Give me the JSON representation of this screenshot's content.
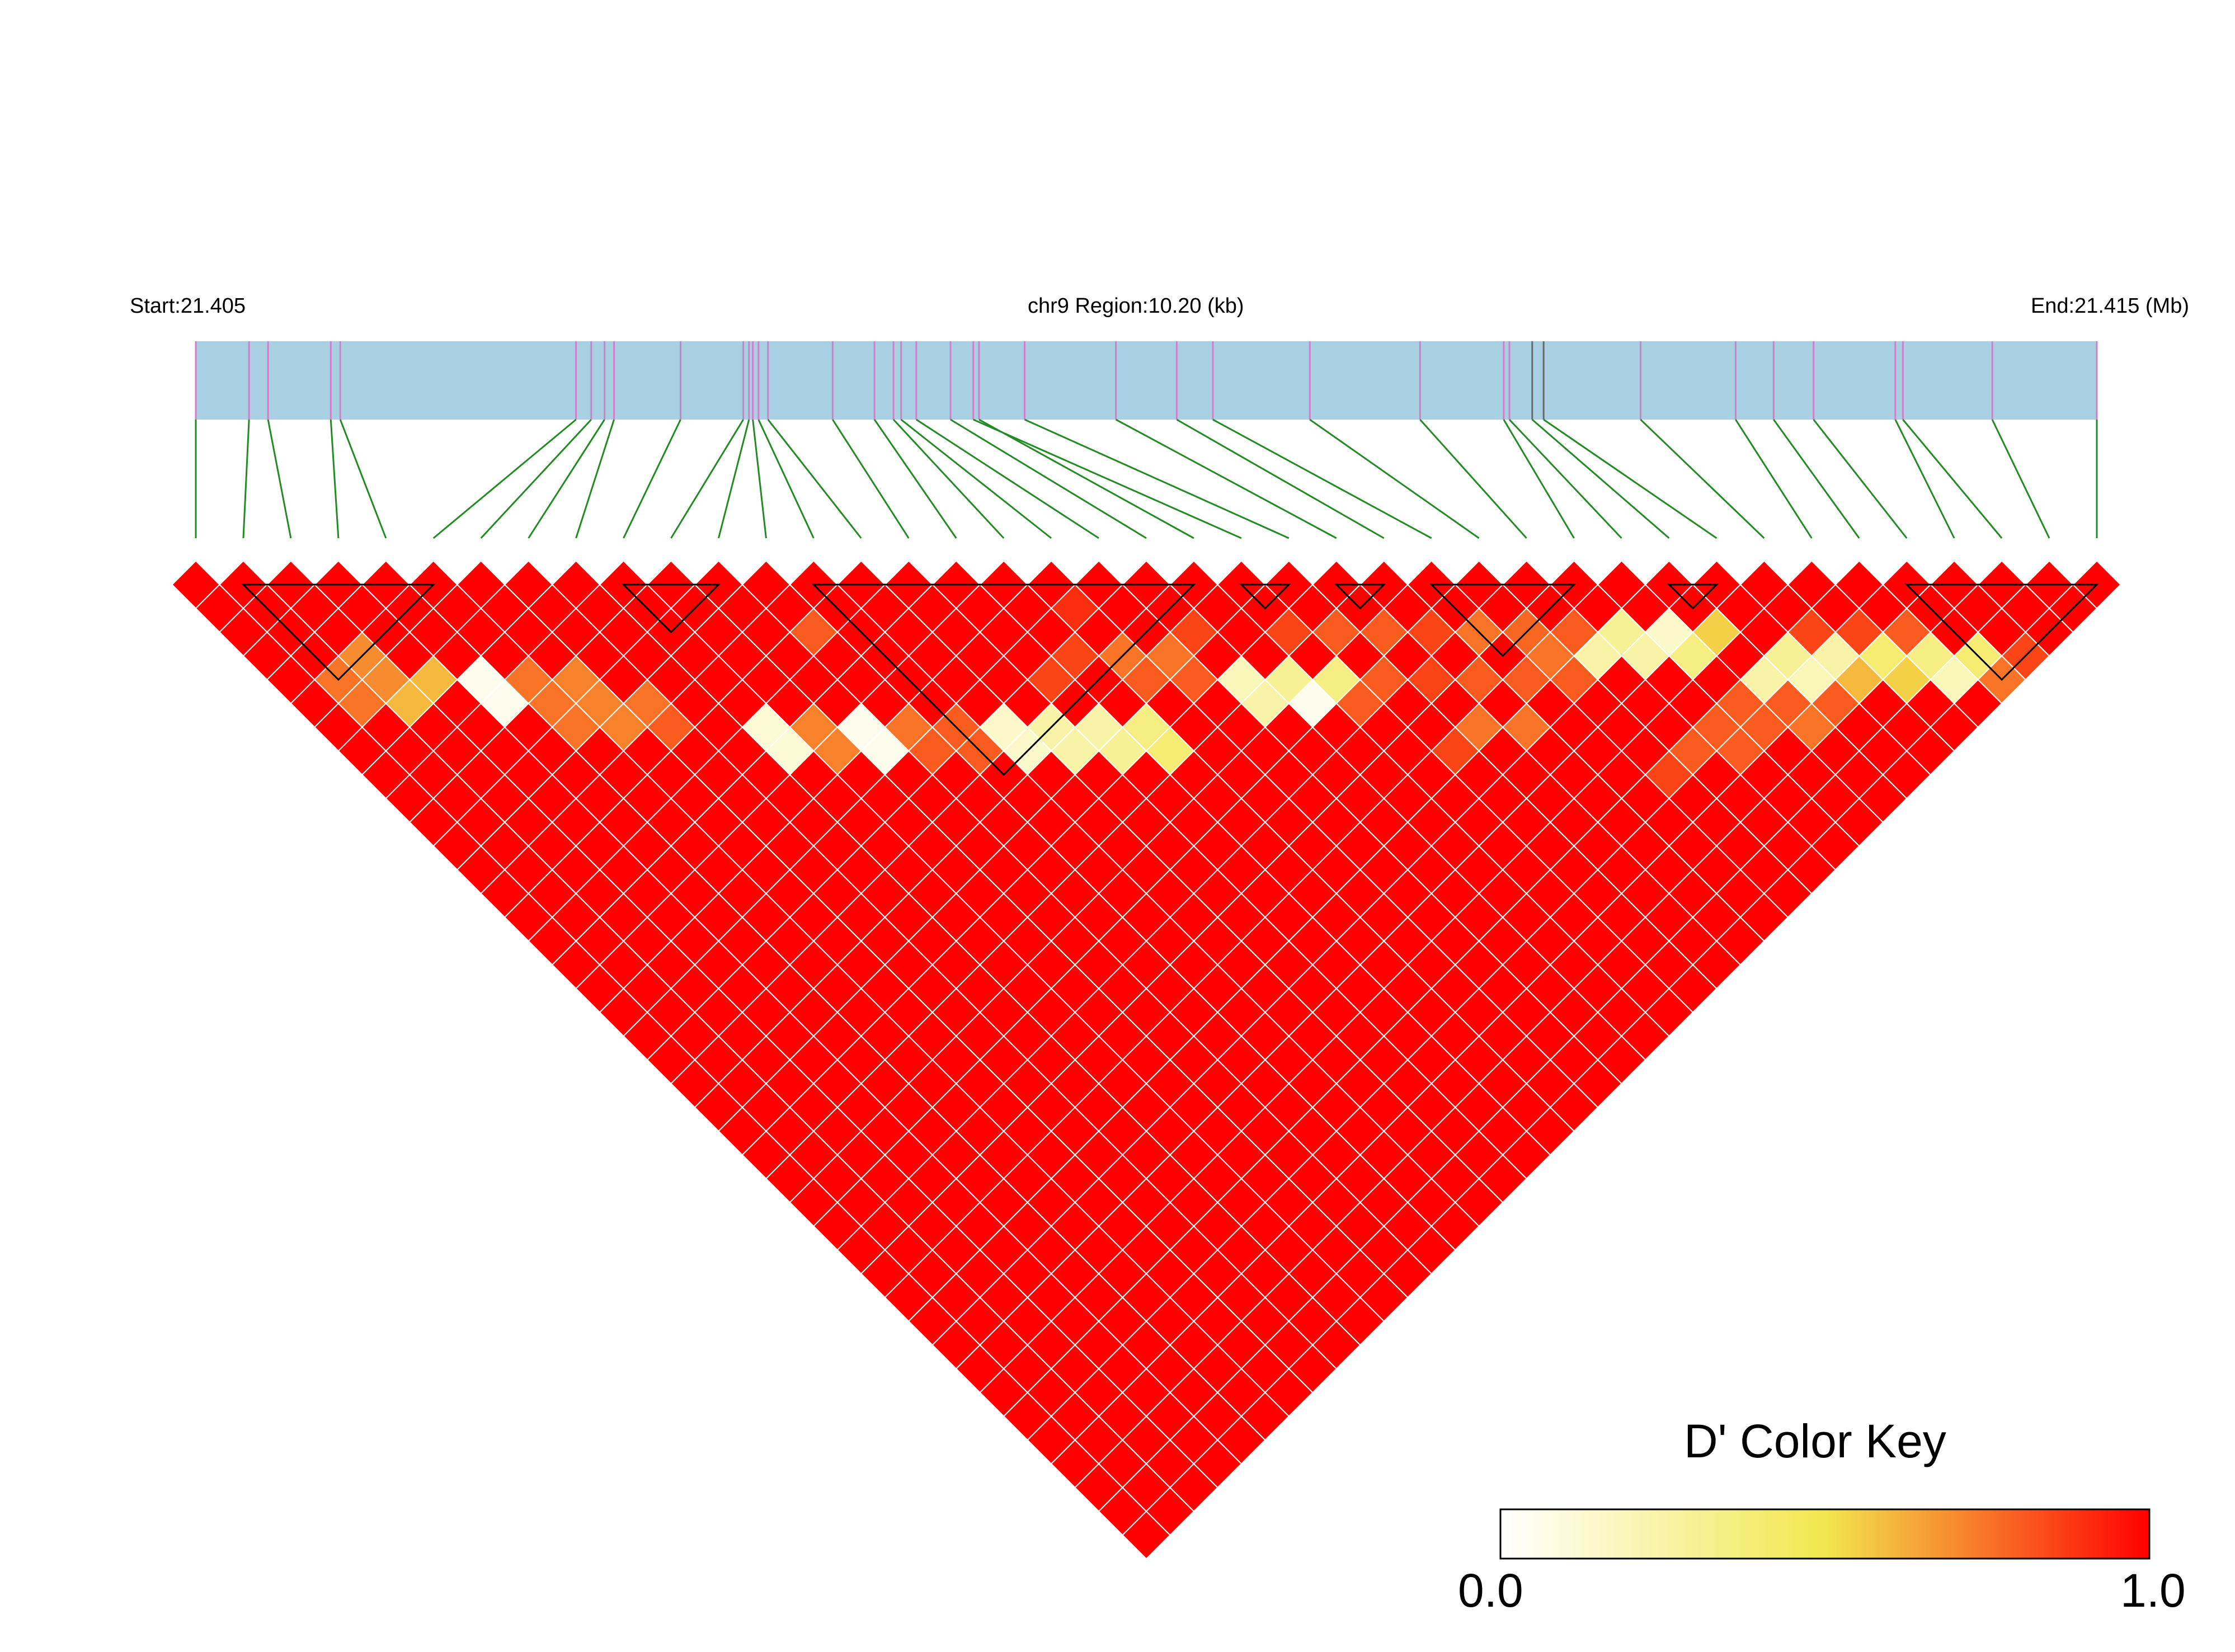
{
  "header": {
    "start_label": "Start:21.405",
    "region_label": "chr9 Region:10.20 (kb)",
    "end_label": "End:21.415 (Mb)"
  },
  "color_key": {
    "title": "D' Color Key",
    "min_label": "0.0",
    "max_label": "1.0",
    "colors": [
      "#ffffff",
      "#f2e74e",
      "#ff0000"
    ]
  },
  "colors": {
    "track": "#a8cfe2",
    "snp_tick": "#d07fc8",
    "snp_tick_dark": "#6a6a6a",
    "connector": "#238b23",
    "grid": "#ffffff",
    "block_outline": "#000000"
  },
  "chart_data": {
    "type": "heatmap",
    "title": "",
    "value_label": "D'",
    "region": {
      "chromosome": "chr9",
      "start_mb": 21.405,
      "end_mb": 21.415,
      "length_kb": 10.2
    },
    "n_snps": 41,
    "snp_relative_positions": [
      0.0,
      0.028,
      0.038,
      0.071,
      0.076,
      0.2,
      0.208,
      0.215,
      0.22,
      0.255,
      0.288,
      0.291,
      0.293,
      0.296,
      0.301,
      0.335,
      0.357,
      0.367,
      0.371,
      0.379,
      0.397,
      0.412,
      0.409,
      0.436,
      0.484,
      0.516,
      0.535,
      0.586,
      0.644,
      0.688,
      0.691,
      0.703,
      0.709,
      0.76,
      0.81,
      0.83,
      0.851,
      0.894,
      0.898,
      0.945,
      1.0
    ],
    "dark_ticks": [
      31,
      32
    ],
    "default_dprime": 1.0,
    "dprime_exceptions": [
      [
        1,
        5,
        0.75
      ],
      [
        1,
        6,
        0.75
      ],
      [
        2,
        5,
        0.7
      ],
      [
        2,
        6,
        0.7
      ],
      [
        2,
        7,
        0.6
      ],
      [
        3,
        7,
        0.6
      ],
      [
        4,
        8,
        0.05
      ],
      [
        4,
        9,
        0.05
      ],
      [
        5,
        9,
        0.75
      ],
      [
        5,
        10,
        0.75
      ],
      [
        5,
        11,
        0.75
      ],
      [
        6,
        10,
        0.72
      ],
      [
        6,
        11,
        0.72
      ],
      [
        6,
        12,
        0.72
      ],
      [
        7,
        12,
        0.75
      ],
      [
        7,
        13,
        0.8
      ],
      [
        9,
        15,
        0.12
      ],
      [
        9,
        16,
        0.12
      ],
      [
        10,
        16,
        0.72
      ],
      [
        10,
        17,
        0.72
      ],
      [
        11,
        17,
        0.05
      ],
      [
        11,
        18,
        0.05
      ],
      [
        12,
        18,
        0.75
      ],
      [
        12,
        19,
        0.8
      ],
      [
        12,
        14,
        0.8
      ],
      [
        13,
        19,
        0.8
      ],
      [
        13,
        20,
        0.8
      ],
      [
        14,
        20,
        0.15
      ],
      [
        14,
        21,
        0.15
      ],
      [
        15,
        21,
        0.25
      ],
      [
        15,
        22,
        0.25
      ],
      [
        16,
        22,
        0.25
      ],
      [
        16,
        23,
        0.3
      ],
      [
        17,
        23,
        0.35
      ],
      [
        17,
        24,
        0.4
      ],
      [
        18,
        21,
        0.75
      ],
      [
        18,
        22,
        0.8
      ],
      [
        19,
        22,
        0.75
      ],
      [
        19,
        23,
        0.8
      ],
      [
        20,
        24,
        0.2
      ],
      [
        20,
        25,
        0.25
      ],
      [
        21,
        25,
        0.3
      ],
      [
        21,
        26,
        0.05
      ],
      [
        22,
        26,
        0.35
      ],
      [
        22,
        27,
        0.8
      ],
      [
        23,
        27,
        0.8
      ],
      [
        24,
        28,
        0.85
      ],
      [
        25,
        29,
        0.8
      ],
      [
        20,
        22,
        0.85
      ],
      [
        22,
        24,
        0.85
      ],
      [
        23,
        25,
        0.8
      ],
      [
        24,
        26,
        0.8
      ],
      [
        25,
        27,
        0.85
      ],
      [
        26,
        28,
        0.75
      ],
      [
        27,
        29,
        0.78
      ],
      [
        28,
        30,
        0.8
      ],
      [
        28,
        31,
        0.25
      ],
      [
        29,
        31,
        0.3
      ],
      [
        29,
        32,
        0.25
      ],
      [
        30,
        33,
        0.35
      ],
      [
        31,
        33,
        0.55
      ],
      [
        30,
        32,
        0.15
      ],
      [
        27,
        30,
        0.75
      ],
      [
        26,
        30,
        0.8
      ],
      [
        27,
        31,
        0.8
      ],
      [
        31,
        35,
        0.25
      ],
      [
        32,
        35,
        0.3
      ],
      [
        32,
        36,
        0.2
      ],
      [
        33,
        36,
        0.25
      ],
      [
        33,
        37,
        0.6
      ],
      [
        34,
        37,
        0.4
      ],
      [
        30,
        35,
        0.8
      ],
      [
        30,
        36,
        0.8
      ],
      [
        31,
        36,
        0.8
      ],
      [
        31,
        37,
        0.75
      ],
      [
        32,
        37,
        0.8
      ],
      [
        34,
        38,
        0.55
      ],
      [
        35,
        38,
        0.35
      ],
      [
        35,
        39,
        0.2
      ],
      [
        36,
        39,
        0.4
      ],
      [
        36,
        40,
        0.75
      ],
      [
        37,
        40,
        0.85
      ],
      [
        29,
        35,
        0.8
      ],
      [
        28,
        35,
        0.8
      ],
      [
        29,
        36,
        0.8
      ],
      [
        27,
        35,
        0.85
      ],
      [
        33,
        35,
        0.85
      ],
      [
        34,
        36,
        0.85
      ],
      [
        35,
        37,
        0.8
      ],
      [
        24,
        30,
        0.75
      ],
      [
        25,
        31,
        0.75
      ],
      [
        23,
        30,
        0.85
      ],
      [
        16,
        20,
        0.85
      ],
      [
        17,
        20,
        0.85
      ],
      [
        18,
        19,
        0.9
      ]
    ],
    "ld_blocks": [
      [
        1,
        5
      ],
      [
        9,
        11
      ],
      [
        13,
        21
      ],
      [
        22,
        23
      ],
      [
        24,
        25
      ],
      [
        26,
        29
      ],
      [
        31,
        32
      ],
      [
        36,
        40
      ]
    ]
  }
}
